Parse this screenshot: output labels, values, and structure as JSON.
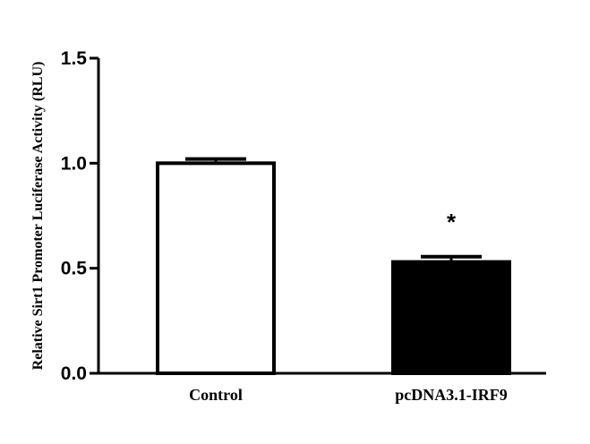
{
  "chart_data": {
    "type": "bar",
    "title": "",
    "xlabel": "",
    "ylabel": "Relative Sirt1 Promoter Luciferase Activity (RLU)",
    "ylim": [
      0,
      1.5
    ],
    "yticks": [
      "0.0",
      "0.5",
      "1.0",
      "1.5"
    ],
    "categories": [
      "Control",
      "pcDNA3.1-IRF9"
    ],
    "values": [
      1.0,
      0.53
    ],
    "errors": [
      0.02,
      0.025
    ],
    "bar_fills": [
      "#ffffff",
      "#000000"
    ],
    "significance": [
      "",
      "*"
    ],
    "grid": false,
    "legend": "none"
  }
}
